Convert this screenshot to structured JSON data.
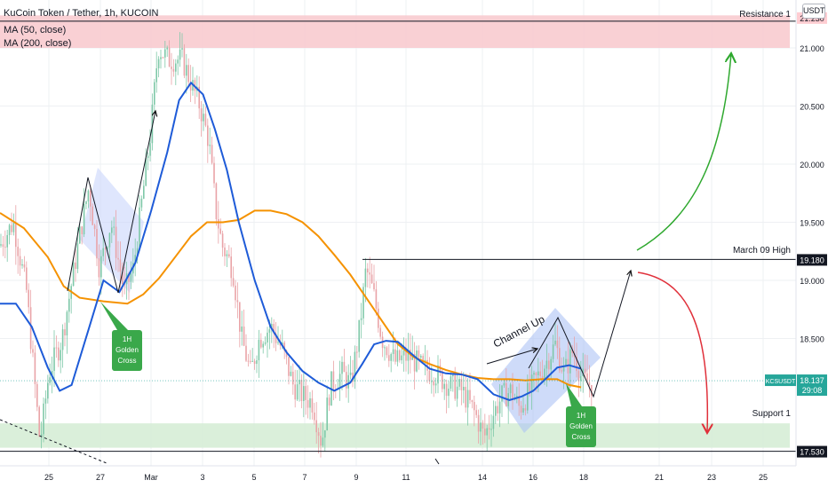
{
  "header": {
    "symbol_title": "KuCoin Token / Tether, 1h, KUCOIN",
    "indicator_1": "MA (50, close)",
    "indicator_2": "MA (200, close)",
    "currency_button": "USDT"
  },
  "chart_data": {
    "type": "line",
    "title": "KuCoin Token / Tether, 1h, KUCOIN",
    "x_tick_labels": [
      "25",
      "27",
      "Mar",
      "3",
      "5",
      "7",
      "9",
      "11",
      "14",
      "16",
      "18",
      "21",
      "23",
      "25"
    ],
    "y_tick_labels": [
      "21.000",
      "20.500",
      "20.000",
      "19.500",
      "19.000",
      "18.500"
    ],
    "ylim": [
      17.4,
      21.5
    ],
    "price_axis_labels": [
      {
        "text": "21.230",
        "value": 21.23,
        "color": "#ffcdd2",
        "text_color": "#131722"
      },
      {
        "text": "19.180",
        "value": 19.18,
        "color": "#131722",
        "text_color": "#ffffff"
      },
      {
        "text": "KCSUSDT",
        "value": 18.137,
        "color": "#26a69a",
        "text_color": "#ffffff"
      },
      {
        "text": "18.137",
        "value": 18.137,
        "color": "#26a69a",
        "text_color": "#ffffff"
      },
      {
        "text": "29:08",
        "value": 18.137,
        "color": "#26a69a",
        "text_color": "#ffffff"
      },
      {
        "text": "17.530",
        "value": 17.53,
        "color": "#131722",
        "text_color": "#ffffff"
      }
    ],
    "levels": [
      {
        "label": "Resistance 1",
        "value": 21.23
      },
      {
        "label": "March 09 High",
        "value": 19.18
      },
      {
        "label": "Support 1",
        "value": 17.53
      }
    ],
    "zones": [
      {
        "name": "resistance-zone",
        "from": 21.0,
        "to": 21.28,
        "color": "#f8c8cc"
      },
      {
        "name": "support-zone",
        "from": 17.56,
        "to": 17.77,
        "color": "#d4ecd4"
      }
    ],
    "annotations": [
      {
        "text": "Channel Up"
      },
      {
        "text": "1H\nGolden\nCross"
      },
      {
        "text": "1H\nGolden\nCross"
      }
    ],
    "series": [
      {
        "name": "MA (50, close)",
        "color": "#1e5bd8"
      },
      {
        "name": "MA (200, close)",
        "color": "#f59200"
      }
    ],
    "ma50_path": [
      [
        0,
        18.8
      ],
      [
        0.02,
        18.8
      ],
      [
        0.04,
        18.6
      ],
      [
        0.06,
        18.25
      ],
      [
        0.075,
        18.05
      ],
      [
        0.09,
        18.1
      ],
      [
        0.11,
        18.55
      ],
      [
        0.13,
        19.0
      ],
      [
        0.15,
        18.9
      ],
      [
        0.17,
        19.15
      ],
      [
        0.19,
        19.6
      ],
      [
        0.21,
        20.1
      ],
      [
        0.225,
        20.55
      ],
      [
        0.24,
        20.7
      ],
      [
        0.255,
        20.6
      ],
      [
        0.27,
        20.3
      ],
      [
        0.285,
        19.95
      ],
      [
        0.3,
        19.5
      ],
      [
        0.32,
        19.0
      ],
      [
        0.34,
        18.6
      ],
      [
        0.36,
        18.38
      ],
      [
        0.38,
        18.22
      ],
      [
        0.4,
        18.12
      ],
      [
        0.42,
        18.05
      ],
      [
        0.44,
        18.12
      ],
      [
        0.455,
        18.28
      ],
      [
        0.47,
        18.45
      ],
      [
        0.485,
        18.48
      ],
      [
        0.5,
        18.47
      ],
      [
        0.52,
        18.35
      ],
      [
        0.54,
        18.24
      ],
      [
        0.56,
        18.2
      ],
      [
        0.58,
        18.19
      ],
      [
        0.6,
        18.15
      ],
      [
        0.62,
        18.02
      ],
      [
        0.64,
        17.97
      ],
      [
        0.655,
        18.0
      ],
      [
        0.67,
        18.05
      ],
      [
        0.685,
        18.15
      ],
      [
        0.7,
        18.25
      ],
      [
        0.715,
        18.27
      ],
      [
        0.73,
        18.24
      ]
    ],
    "ma200_path": [
      [
        0,
        19.58
      ],
      [
        0.03,
        19.45
      ],
      [
        0.06,
        19.2
      ],
      [
        0.08,
        18.95
      ],
      [
        0.1,
        18.85
      ],
      [
        0.13,
        18.82
      ],
      [
        0.16,
        18.8
      ],
      [
        0.18,
        18.88
      ],
      [
        0.2,
        19.02
      ],
      [
        0.22,
        19.2
      ],
      [
        0.24,
        19.38
      ],
      [
        0.26,
        19.5
      ],
      [
        0.28,
        19.5
      ],
      [
        0.3,
        19.52
      ],
      [
        0.32,
        19.6
      ],
      [
        0.34,
        19.6
      ],
      [
        0.36,
        19.57
      ],
      [
        0.38,
        19.5
      ],
      [
        0.4,
        19.38
      ],
      [
        0.42,
        19.22
      ],
      [
        0.44,
        19.05
      ],
      [
        0.46,
        18.85
      ],
      [
        0.48,
        18.65
      ],
      [
        0.5,
        18.45
      ],
      [
        0.52,
        18.34
      ],
      [
        0.54,
        18.28
      ],
      [
        0.56,
        18.23
      ],
      [
        0.58,
        18.19
      ],
      [
        0.6,
        18.16
      ],
      [
        0.62,
        18.15
      ],
      [
        0.64,
        18.15
      ],
      [
        0.66,
        18.14
      ],
      [
        0.68,
        18.15
      ],
      [
        0.7,
        18.15
      ],
      [
        0.715,
        18.1
      ],
      [
        0.73,
        18.08
      ]
    ]
  }
}
